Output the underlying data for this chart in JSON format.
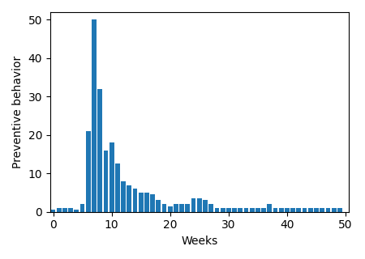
{
  "bar_color": "#1f77b4",
  "xlabel": "Weeks",
  "ylabel": "Preventive behavior",
  "xlim": [
    -0.5,
    50.5
  ],
  "ylim": [
    0,
    52
  ],
  "yticks": [
    0,
    10,
    20,
    30,
    40,
    50
  ],
  "xticks": [
    0,
    10,
    20,
    30,
    40,
    50
  ],
  "bar_width": 0.8,
  "figsize": [
    4.5,
    3.2
  ],
  "dpi": 100,
  "values": [
    0.5,
    1,
    1,
    1,
    0.5,
    2,
    21,
    50,
    32,
    16,
    18,
    12.5,
    8,
    7,
    6,
    5,
    5,
    4.5,
    3,
    2,
    1.5,
    2,
    2,
    2,
    3.5,
    3.5,
    3,
    2,
    1,
    1,
    1,
    1,
    1,
    1,
    1,
    1,
    1,
    2,
    1,
    1,
    1,
    1,
    1,
    1,
    1,
    1,
    1,
    1,
    1,
    1
  ]
}
